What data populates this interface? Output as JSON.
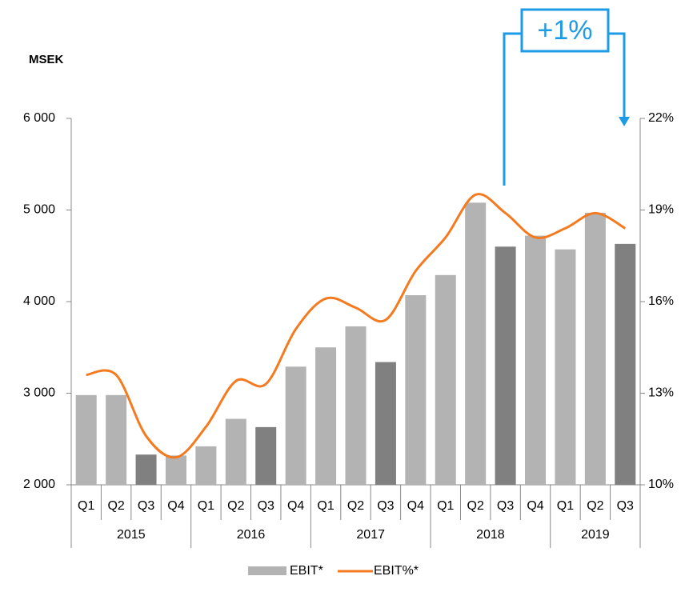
{
  "chart_data": {
    "type": "bar_line",
    "y_label": "MSEK",
    "annotation": "+1%",
    "annotation_color": "#1e9be6",
    "categories": [
      "Q1",
      "Q2",
      "Q3",
      "Q4",
      "Q1",
      "Q2",
      "Q3",
      "Q4",
      "Q1",
      "Q2",
      "Q3",
      "Q4",
      "Q1",
      "Q2",
      "Q3",
      "Q4",
      "Q1",
      "Q2",
      "Q3"
    ],
    "category_groups": [
      "2015",
      "2015",
      "2015",
      "2015",
      "2016",
      "2016",
      "2016",
      "2016",
      "2017",
      "2017",
      "2017",
      "2017",
      "2018",
      "2018",
      "2018",
      "2018",
      "2019",
      "2019",
      "2019"
    ],
    "series": [
      {
        "name": "EBIT*",
        "type": "bar",
        "color": "#b3b3b3",
        "colors": [
          "#b3b3b3",
          "#b3b3b3",
          "#808080",
          "#b3b3b3",
          "#b3b3b3",
          "#b3b3b3",
          "#808080",
          "#b3b3b3",
          "#b3b3b3",
          "#b3b3b3",
          "#808080",
          "#b3b3b3",
          "#b3b3b3",
          "#b3b3b3",
          "#808080",
          "#b3b3b3",
          "#b3b3b3",
          "#b3b3b3",
          "#808080"
        ],
        "values": [
          2980,
          2980,
          2330,
          2320,
          2420,
          2720,
          2630,
          3290,
          3500,
          3730,
          3340,
          4070,
          4290,
          5080,
          4600,
          4720,
          4570,
          4970,
          4630
        ]
      },
      {
        "name": "EBIT%*",
        "type": "line",
        "axis": "y2",
        "color": "#f47a20",
        "values": [
          13.6,
          13.6,
          11.6,
          10.9,
          11.9,
          13.4,
          13.3,
          15.1,
          16.1,
          15.8,
          15.4,
          17.0,
          18.1,
          19.5,
          18.9,
          18.1,
          18.4,
          18.9,
          18.4
        ]
      }
    ],
    "ylim": [
      2000,
      6000
    ],
    "yticks": [
      {
        "value": 2000,
        "label": "2 000"
      },
      {
        "value": 3000,
        "label": "3 000"
      },
      {
        "value": 4000,
        "label": "4 000"
      },
      {
        "value": 5000,
        "label": "5 000"
      },
      {
        "value": 6000,
        "label": "6 000"
      }
    ],
    "y2lim": [
      10,
      22
    ],
    "y2ticks": [
      {
        "value": 10,
        "label": "10%"
      },
      {
        "value": 13,
        "label": "13%"
      },
      {
        "value": 16,
        "label": "16%"
      },
      {
        "value": 19,
        "label": "19%"
      },
      {
        "value": 22,
        "label": "22%"
      }
    ]
  }
}
